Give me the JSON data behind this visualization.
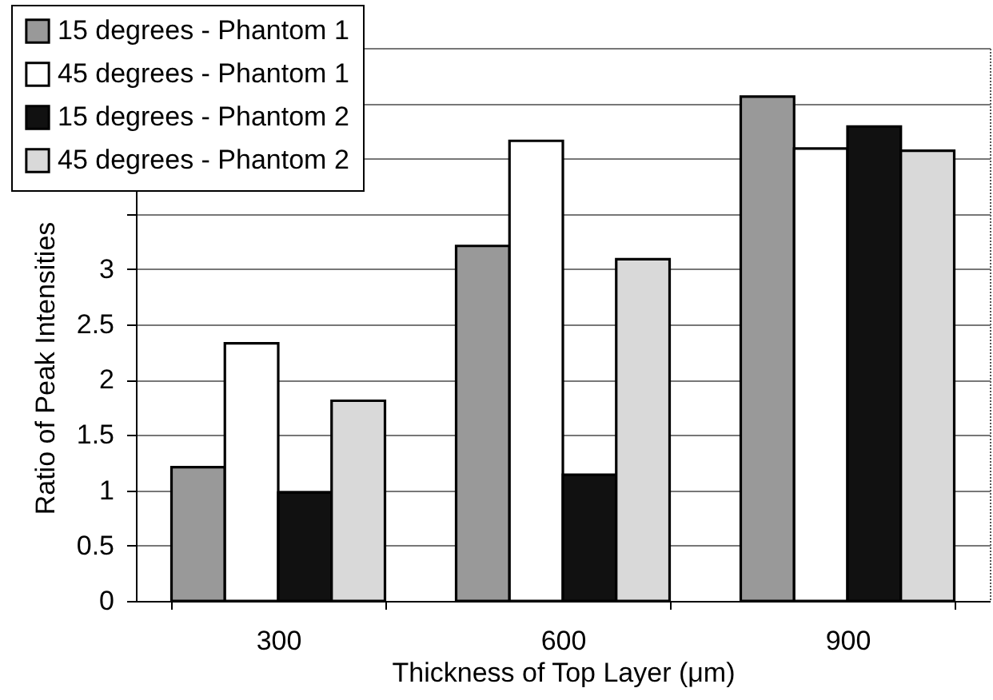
{
  "chart_data": {
    "type": "bar",
    "xlabel": "Thickness of Top Layer (μm)",
    "ylabel": "Ratio of Peak Intensities",
    "categories": [
      "300",
      "600",
      "900"
    ],
    "series": [
      {
        "name": "15 degrees - Phantom 1",
        "color": "#999999",
        "values": [
          1.21,
          3.21,
          4.56
        ]
      },
      {
        "name": "45 degrees - Phantom 1",
        "color": "#ffffff",
        "values": [
          2.33,
          4.16,
          4.09
        ]
      },
      {
        "name": "15 degrees - Phantom 2",
        "color": "#111111",
        "values": [
          0.98,
          1.14,
          4.29
        ]
      },
      {
        "name": "45 degrees - Phantom 2",
        "color": "#d9d9d9",
        "values": [
          1.81,
          3.09,
          4.07
        ]
      }
    ],
    "ylim": [
      0,
      5
    ],
    "yticks": [
      0,
      0.5,
      1,
      1.5,
      2,
      2.5,
      3,
      {
        "value": 3.5,
        "label": null
      },
      {
        "value": 4,
        "label": null
      },
      {
        "value": 4.5,
        "label": null
      },
      {
        "value": 5,
        "label": null
      }
    ],
    "grid": "y",
    "legend": "top left"
  }
}
